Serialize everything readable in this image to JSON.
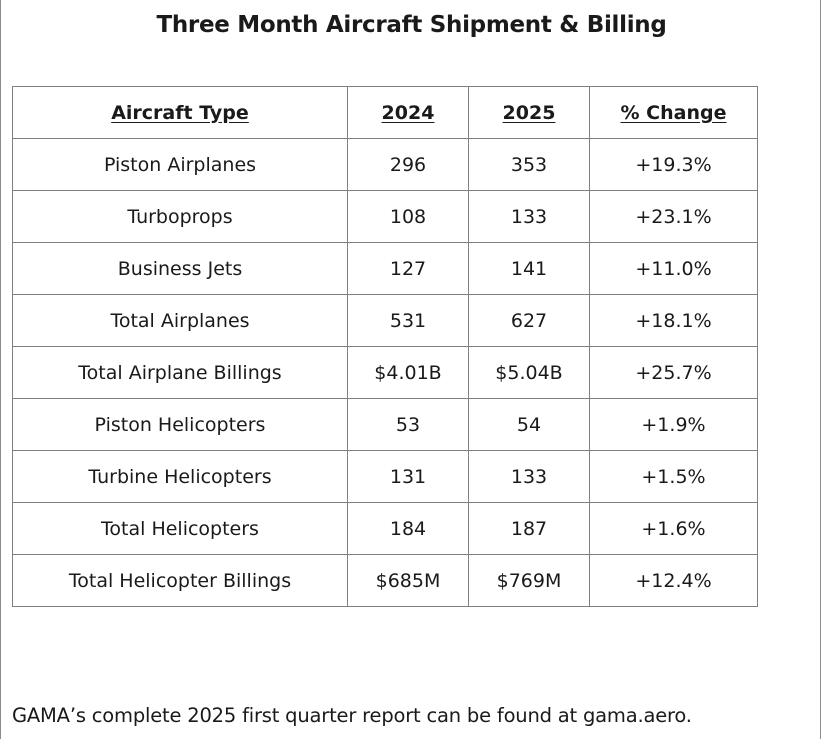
{
  "title": "Three Month Aircraft Shipment & Billing",
  "table": {
    "headers": [
      "Aircraft Type ",
      "2024",
      "2025",
      "% Change"
    ],
    "rows": [
      [
        "Piston Airplanes",
        "296",
        "353",
        "+19.3%"
      ],
      [
        "Turboprops",
        "108",
        "133",
        "+23.1%"
      ],
      [
        "Business Jets",
        "127",
        "141",
        "+11.0%"
      ],
      [
        "Total Airplanes",
        "531",
        "627",
        "+18.1%"
      ],
      [
        "Total Airplane Billings",
        "$4.01B",
        "$5.04B",
        "+25.7%"
      ],
      [
        "Piston Helicopters",
        "53",
        "54",
        "+1.9%"
      ],
      [
        "Turbine Helicopters",
        "131",
        "133",
        "+1.5%"
      ],
      [
        "Total Helicopters",
        "184",
        "187",
        "+1.6%"
      ],
      [
        "Total Helicopter Billings",
        "$685M",
        "$769M",
        "+12.4%"
      ]
    ]
  },
  "footer": "GAMA’s complete 2025 first quarter report can be found at gama.aero."
}
